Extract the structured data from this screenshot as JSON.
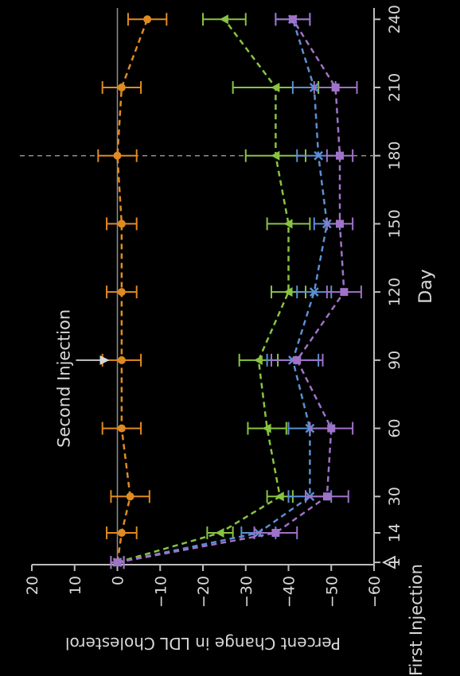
{
  "chart_data": {
    "type": "line",
    "title": "",
    "xlabel": "Day",
    "ylabel": "Percent Change in LDL Cholesterol",
    "x": [
      1,
      14,
      30,
      60,
      90,
      120,
      150,
      180,
      210,
      240
    ],
    "x_tick_labels": [
      "1",
      "14",
      "30",
      "60",
      "90",
      "120",
      "150",
      "180",
      "210",
      "240"
    ],
    "xlim": [
      0,
      245
    ],
    "ylim": [
      -60,
      20
    ],
    "y_ticks": [
      20,
      10,
      0,
      -10,
      -20,
      -30,
      -40,
      -50,
      -60
    ],
    "y_tick_labels": [
      "20",
      "10",
      "0",
      "−10",
      "−20",
      "−30",
      "−40",
      "−50",
      "−60"
    ],
    "grid": false,
    "reference_lines": [
      {
        "axis": "y",
        "value": 0
      },
      {
        "axis": "x",
        "value": 180,
        "style": "dashed"
      }
    ],
    "annotations": [
      {
        "text": "First Injection",
        "x": 1,
        "marker": "triangle"
      },
      {
        "text": "Second Injection",
        "x": 90,
        "y": 0,
        "marker": "arrow"
      }
    ],
    "series": [
      {
        "color": "#e08a22",
        "marker": "circle",
        "values": [
          0,
          -1,
          -3,
          -1,
          -1,
          -1,
          -1,
          0,
          -1,
          -7
        ],
        "errors": [
          1.5,
          3.5,
          4.5,
          4.5,
          4.5,
          3.5,
          3.5,
          4.5,
          4.5,
          4.5
        ]
      },
      {
        "color": "#88c441",
        "marker": "triangle",
        "values": [
          0,
          -24,
          -38,
          -35,
          -33,
          -40,
          -40,
          -37,
          -37,
          -25
        ],
        "errors": [
          1.5,
          3,
          3,
          4.5,
          4.5,
          4,
          5,
          7,
          10,
          5
        ]
      },
      {
        "color": "#5b8fd3",
        "marker": "x",
        "values": [
          0,
          -33,
          -45,
          -45,
          -41,
          -46,
          -49,
          -47,
          -46,
          -41
        ],
        "errors": [
          1.5,
          4,
          5,
          5,
          6,
          4,
          3,
          5,
          5,
          4
        ]
      },
      {
        "color": "#a072c8",
        "marker": "square",
        "values": [
          0,
          -37,
          -49,
          -50,
          -42,
          -53,
          -52,
          -52,
          -51,
          -41
        ],
        "errors": [
          1.5,
          5,
          5,
          5,
          6,
          4,
          3,
          3,
          5,
          4
        ]
      }
    ]
  }
}
